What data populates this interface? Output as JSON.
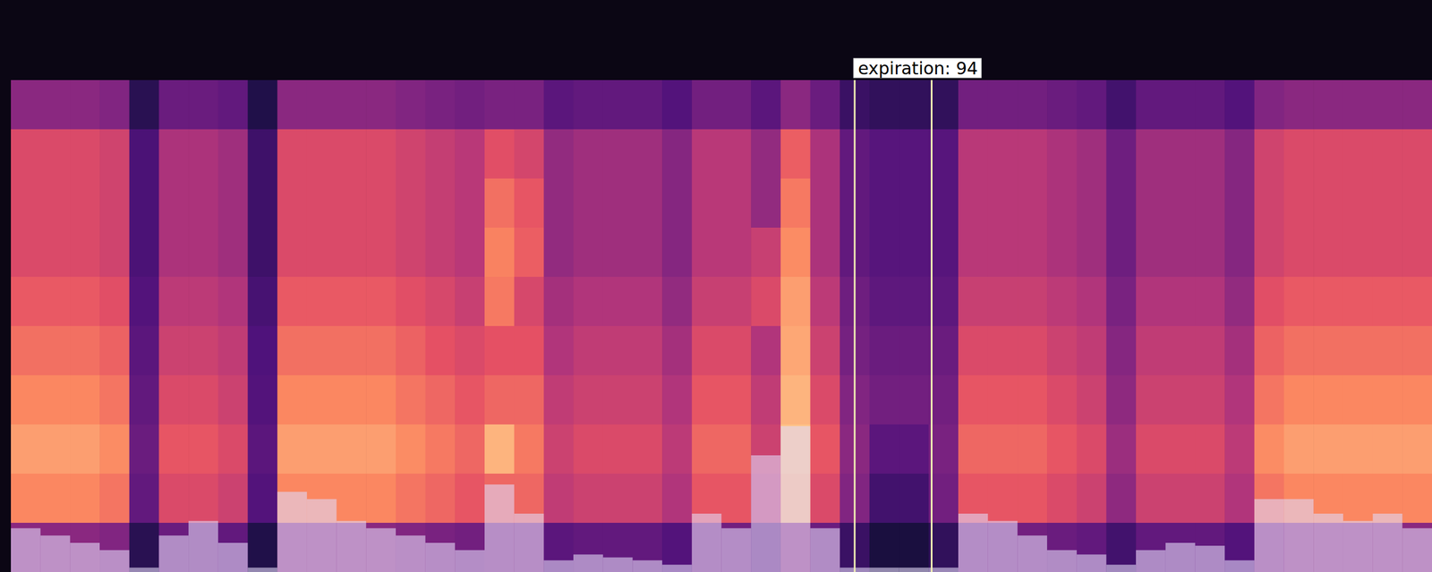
{
  "chart_data": {
    "type": "heatmap",
    "tick_labels": false,
    "xlim": [
      0,
      48
    ],
    "zlim": [
      0,
      100
    ],
    "cells": [
      [
        40,
        40,
        40,
        38,
        16,
        32,
        32,
        30,
        14,
        40,
        40,
        40,
        40,
        38,
        36,
        34,
        36,
        36,
        28,
        30,
        30,
        30,
        26,
        34,
        34,
        28,
        40,
        32,
        20,
        18,
        18,
        18,
        34,
        34,
        34,
        32,
        30,
        22,
        30,
        30,
        30,
        26,
        38,
        40,
        40,
        40,
        40,
        40
      ],
      [
        60,
        60,
        60,
        57,
        24,
        48,
        48,
        45,
        21,
        60,
        60,
        60,
        60,
        57,
        54,
        51,
        62,
        58,
        42,
        45,
        45,
        45,
        39,
        51,
        51,
        42,
        66,
        48,
        30,
        27,
        27,
        27,
        51,
        51,
        51,
        48,
        45,
        33,
        45,
        45,
        45,
        39,
        57,
        60,
        60,
        60,
        60,
        60
      ],
      [
        60,
        60,
        60,
        57,
        24,
        48,
        48,
        45,
        21,
        60,
        60,
        60,
        60,
        57,
        54,
        51,
        70,
        64,
        42,
        45,
        45,
        45,
        39,
        51,
        51,
        42,
        72,
        48,
        30,
        27,
        27,
        27,
        51,
        51,
        51,
        48,
        45,
        33,
        45,
        45,
        45,
        39,
        57,
        60,
        60,
        60,
        60,
        60
      ],
      [
        60,
        60,
        60,
        57,
        24,
        48,
        48,
        45,
        21,
        60,
        60,
        60,
        60,
        57,
        54,
        51,
        74,
        66,
        42,
        45,
        45,
        45,
        39,
        51,
        51,
        55,
        76,
        48,
        30,
        27,
        27,
        27,
        51,
        51,
        51,
        48,
        45,
        33,
        45,
        45,
        45,
        39,
        57,
        60,
        60,
        60,
        60,
        60
      ],
      [
        65,
        65,
        65,
        62,
        26,
        52,
        52,
        49,
        23,
        65,
        65,
        65,
        65,
        62,
        59,
        55,
        72,
        59,
        46,
        49,
        49,
        49,
        42,
        55,
        55,
        60,
        80,
        52,
        33,
        29,
        29,
        29,
        55,
        55,
        55,
        52,
        49,
        36,
        49,
        49,
        49,
        42,
        62,
        65,
        65,
        65,
        65,
        65
      ],
      [
        70,
        70,
        70,
        67,
        28,
        56,
        56,
        53,
        25,
        70,
        70,
        70,
        70,
        67,
        63,
        60,
        63,
        63,
        49,
        53,
        53,
        53,
        46,
        60,
        60,
        49,
        82,
        56,
        35,
        32,
        32,
        32,
        60,
        60,
        60,
        56,
        53,
        39,
        53,
        53,
        53,
        46,
        67,
        70,
        70,
        70,
        70,
        70
      ],
      [
        75,
        75,
        75,
        71,
        30,
        60,
        60,
        56,
        26,
        75,
        75,
        75,
        75,
        71,
        68,
        64,
        68,
        68,
        53,
        56,
        56,
        56,
        49,
        64,
        64,
        53,
        85,
        60,
        38,
        34,
        34,
        34,
        64,
        64,
        64,
        60,
        56,
        41,
        56,
        56,
        56,
        49,
        71,
        75,
        75,
        75,
        75,
        75
      ],
      [
        80,
        80,
        80,
        76,
        32,
        64,
        64,
        60,
        28,
        80,
        80,
        80,
        80,
        76,
        72,
        68,
        85,
        72,
        56,
        60,
        60,
        60,
        52,
        68,
        68,
        56,
        88,
        64,
        40,
        28,
        28,
        36,
        68,
        68,
        68,
        64,
        60,
        44,
        60,
        60,
        60,
        52,
        76,
        80,
        80,
        80,
        80,
        80
      ],
      [
        75,
        75,
        75,
        71,
        30,
        60,
        60,
        56,
        26,
        75,
        75,
        75,
        75,
        71,
        68,
        64,
        68,
        68,
        53,
        56,
        56,
        56,
        49,
        64,
        64,
        53,
        86,
        60,
        38,
        22,
        22,
        34,
        64,
        64,
        64,
        60,
        56,
        41,
        56,
        56,
        56,
        49,
        71,
        75,
        75,
        75,
        75,
        75
      ],
      [
        40,
        40,
        40,
        38,
        16,
        32,
        32,
        30,
        14,
        40,
        40,
        40,
        40,
        38,
        36,
        34,
        36,
        36,
        28,
        30,
        30,
        30,
        26,
        34,
        34,
        28,
        40,
        32,
        20,
        12,
        12,
        18,
        34,
        34,
        34,
        32,
        30,
        22,
        30,
        30,
        30,
        26,
        38,
        40,
        40,
        40,
        40,
        40
      ]
    ],
    "waveform": [
      30,
      25,
      20,
      15,
      3,
      25,
      35,
      20,
      3,
      55,
      50,
      35,
      30,
      25,
      20,
      15,
      60,
      40,
      8,
      12,
      10,
      8,
      5,
      40,
      30,
      80,
      100,
      30,
      3,
      3,
      3,
      3,
      40,
      35,
      25,
      15,
      12,
      5,
      15,
      20,
      18,
      8,
      50,
      50,
      40,
      35,
      40,
      30
    ],
    "annotations": [
      {
        "text": "expiration: 94",
        "x": [
          28.5,
          31.1
        ]
      }
    ]
  }
}
